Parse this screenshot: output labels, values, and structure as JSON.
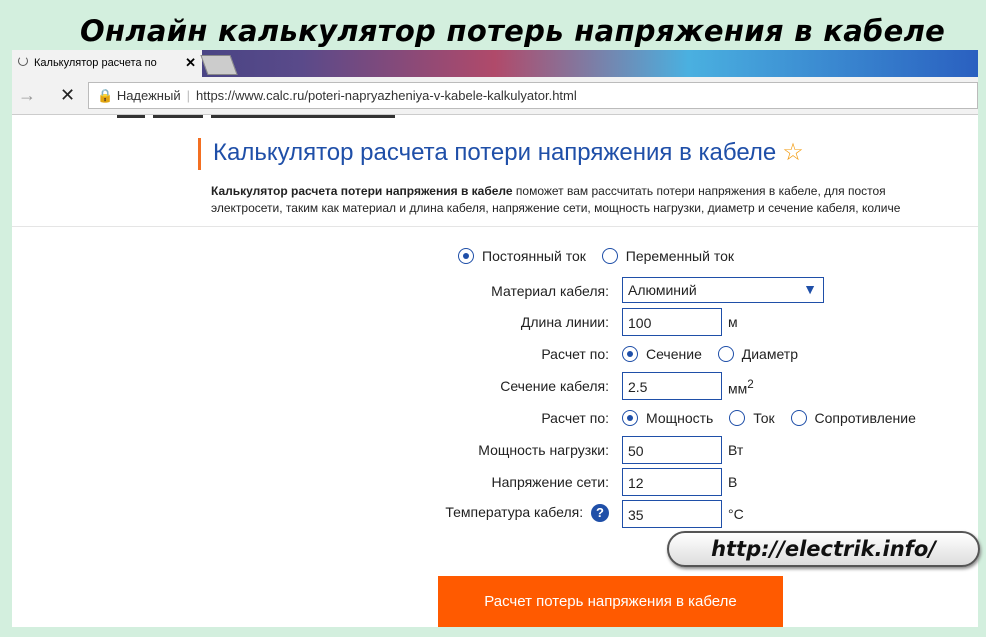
{
  "overlay_title": "Онлайн калькулятор потерь напряжения в кабеле",
  "browser": {
    "tab_title": "Калькулятор расчета по",
    "secure_label": "Надежный",
    "url": "https://www.calc.ru/poteri-napryazheniya-v-kabele-kalkulyator.html"
  },
  "page": {
    "heading": "Калькулятор расчета потери напряжения в кабеле",
    "desc_bold": "Калькулятор расчета потери напряжения в кабеле",
    "desc_rest": " поможет вам рассчитать потери напряжения в кабеле, для постоя",
    "desc_line2": "электросети, таким как материал и длина кабеля, напряжение сети, мощность нагрузки, диаметр и сечение кабеля, количе"
  },
  "form": {
    "current": {
      "options": [
        "Постоянный ток",
        "Переменный ток"
      ],
      "selected": "Постоянный ток"
    },
    "material": {
      "label": "Материал кабеля:",
      "value": "Алюминий"
    },
    "length": {
      "label": "Длина линии:",
      "value": "100",
      "unit": "м"
    },
    "calc_by1": {
      "label": "Расчет по:",
      "options": [
        "Сечение",
        "Диаметр"
      ],
      "selected": "Сечение"
    },
    "section": {
      "label": "Сечение кабеля:",
      "value": "2.5",
      "unit": "мм",
      "unit_sup": "2"
    },
    "calc_by2": {
      "label": "Расчет по:",
      "options": [
        "Мощность",
        "Ток",
        "Сопротивление"
      ],
      "selected": "Мощность"
    },
    "power": {
      "label": "Мощность нагрузки:",
      "value": "50",
      "unit": "Вт"
    },
    "voltage": {
      "label": "Напряжение сети:",
      "value": "12",
      "unit": "В"
    },
    "temperature": {
      "label": "Температура кабеля:",
      "value": "35",
      "unit": "°C",
      "help": "?"
    },
    "submit": "Расчет потерь напряжения в кабеле"
  },
  "watermark": "http://electrik.info/",
  "colors": {
    "accent": "#ff5a00",
    "link_blue": "#1f4fa8",
    "frame": "#d3efde"
  }
}
